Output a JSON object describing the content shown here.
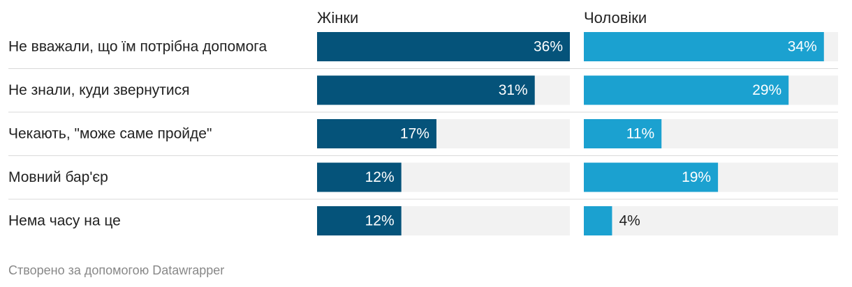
{
  "chart_data": {
    "type": "bar",
    "orientation": "horizontal",
    "layout": "small-multiples",
    "value_format": "{v}%",
    "xlim": [
      0,
      36
    ],
    "categories": [
      "Не вважали, що їм потрібна допомога",
      "Не знали, куди звернутися",
      "Чекають, \"може саме пройде\"",
      "Мовний бар'єр",
      "Нема часу на це"
    ],
    "series": [
      {
        "name": "Жінки",
        "values": [
          36,
          31,
          17,
          12,
          12
        ],
        "color": "#05537a"
      },
      {
        "name": "Чоловіки",
        "values": [
          34,
          29,
          11,
          19,
          4
        ],
        "color": "#1ba1d0"
      }
    ],
    "grid": false,
    "legend": "none"
  },
  "colors": {
    "track": "#f2f2f2",
    "separator": "#d9d9d9",
    "text": "#222222",
    "label_inside": "#ffffff",
    "footer": "#888888"
  },
  "footer": {
    "credit": "Створено за допомогою Datawrapper"
  }
}
